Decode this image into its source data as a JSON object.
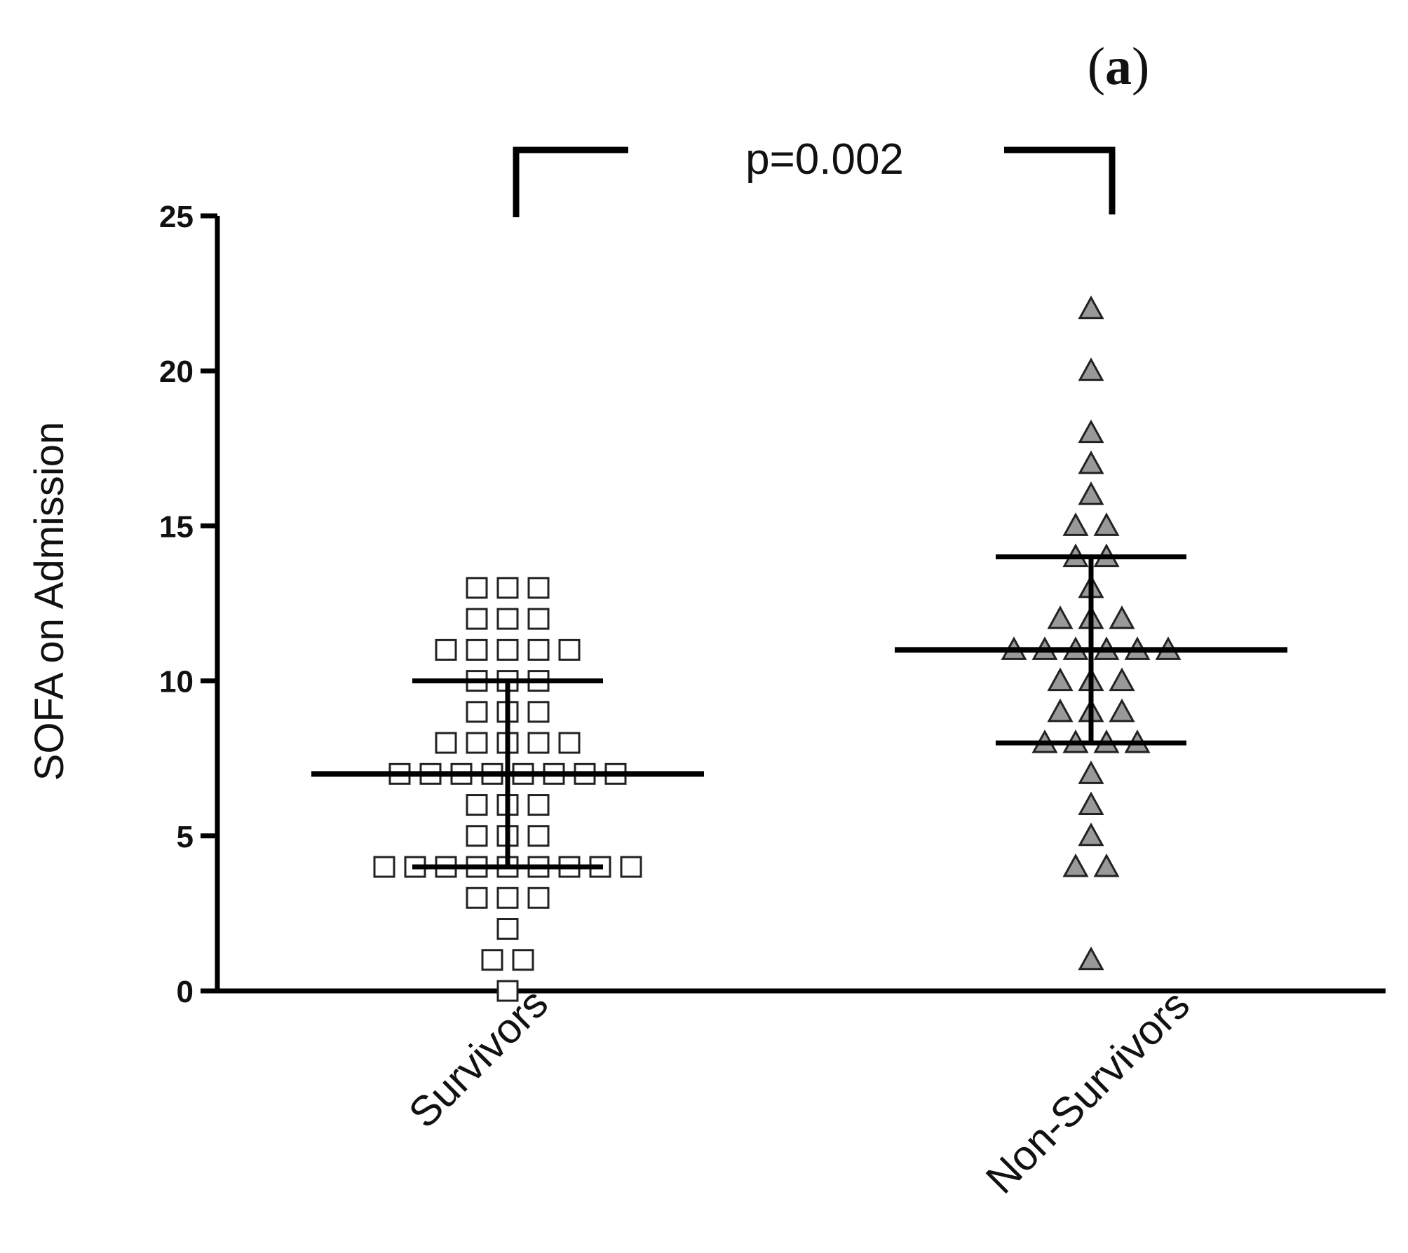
{
  "chart_data": {
    "type": "scatter",
    "panel_label": {
      "open": "(",
      "letter": "a",
      "close": ")"
    },
    "ylabel": "SOFA on Admission",
    "xlabel": "",
    "ylim": [
      0,
      25
    ],
    "yticks": [
      "0",
      "5",
      "10",
      "15",
      "20",
      "25"
    ],
    "categories": [
      "Survivors",
      "Non-Survivors"
    ],
    "annotation": "p=0.002",
    "series": [
      {
        "name": "Survivors",
        "marker": "open-square",
        "color": "#ffffff",
        "stroke": "#222222",
        "values": [
          13,
          13,
          13,
          12,
          12,
          12,
          11,
          11,
          11,
          11,
          11,
          10,
          10,
          10,
          9,
          9,
          9,
          8,
          8,
          8,
          8,
          8,
          7,
          7,
          7,
          7,
          7,
          7,
          7,
          7,
          6,
          6,
          6,
          5,
          5,
          5,
          4,
          4,
          4,
          4,
          4,
          4,
          4,
          4,
          4,
          3,
          3,
          3,
          2,
          1,
          1,
          0
        ],
        "median": 7,
        "q1": 4,
        "q3": 10
      },
      {
        "name": "Non-Survivors",
        "marker": "filled-triangle",
        "color": "#999999",
        "stroke": "#222222",
        "values": [
          22,
          20,
          18,
          17,
          16,
          15,
          15,
          14,
          14,
          13,
          12,
          12,
          12,
          11,
          11,
          11,
          11,
          11,
          11,
          10,
          10,
          10,
          9,
          9,
          9,
          8,
          8,
          8,
          8,
          7,
          6,
          5,
          4,
          4,
          1
        ],
        "median": 11,
        "q1": 8,
        "q3": 14
      }
    ]
  }
}
